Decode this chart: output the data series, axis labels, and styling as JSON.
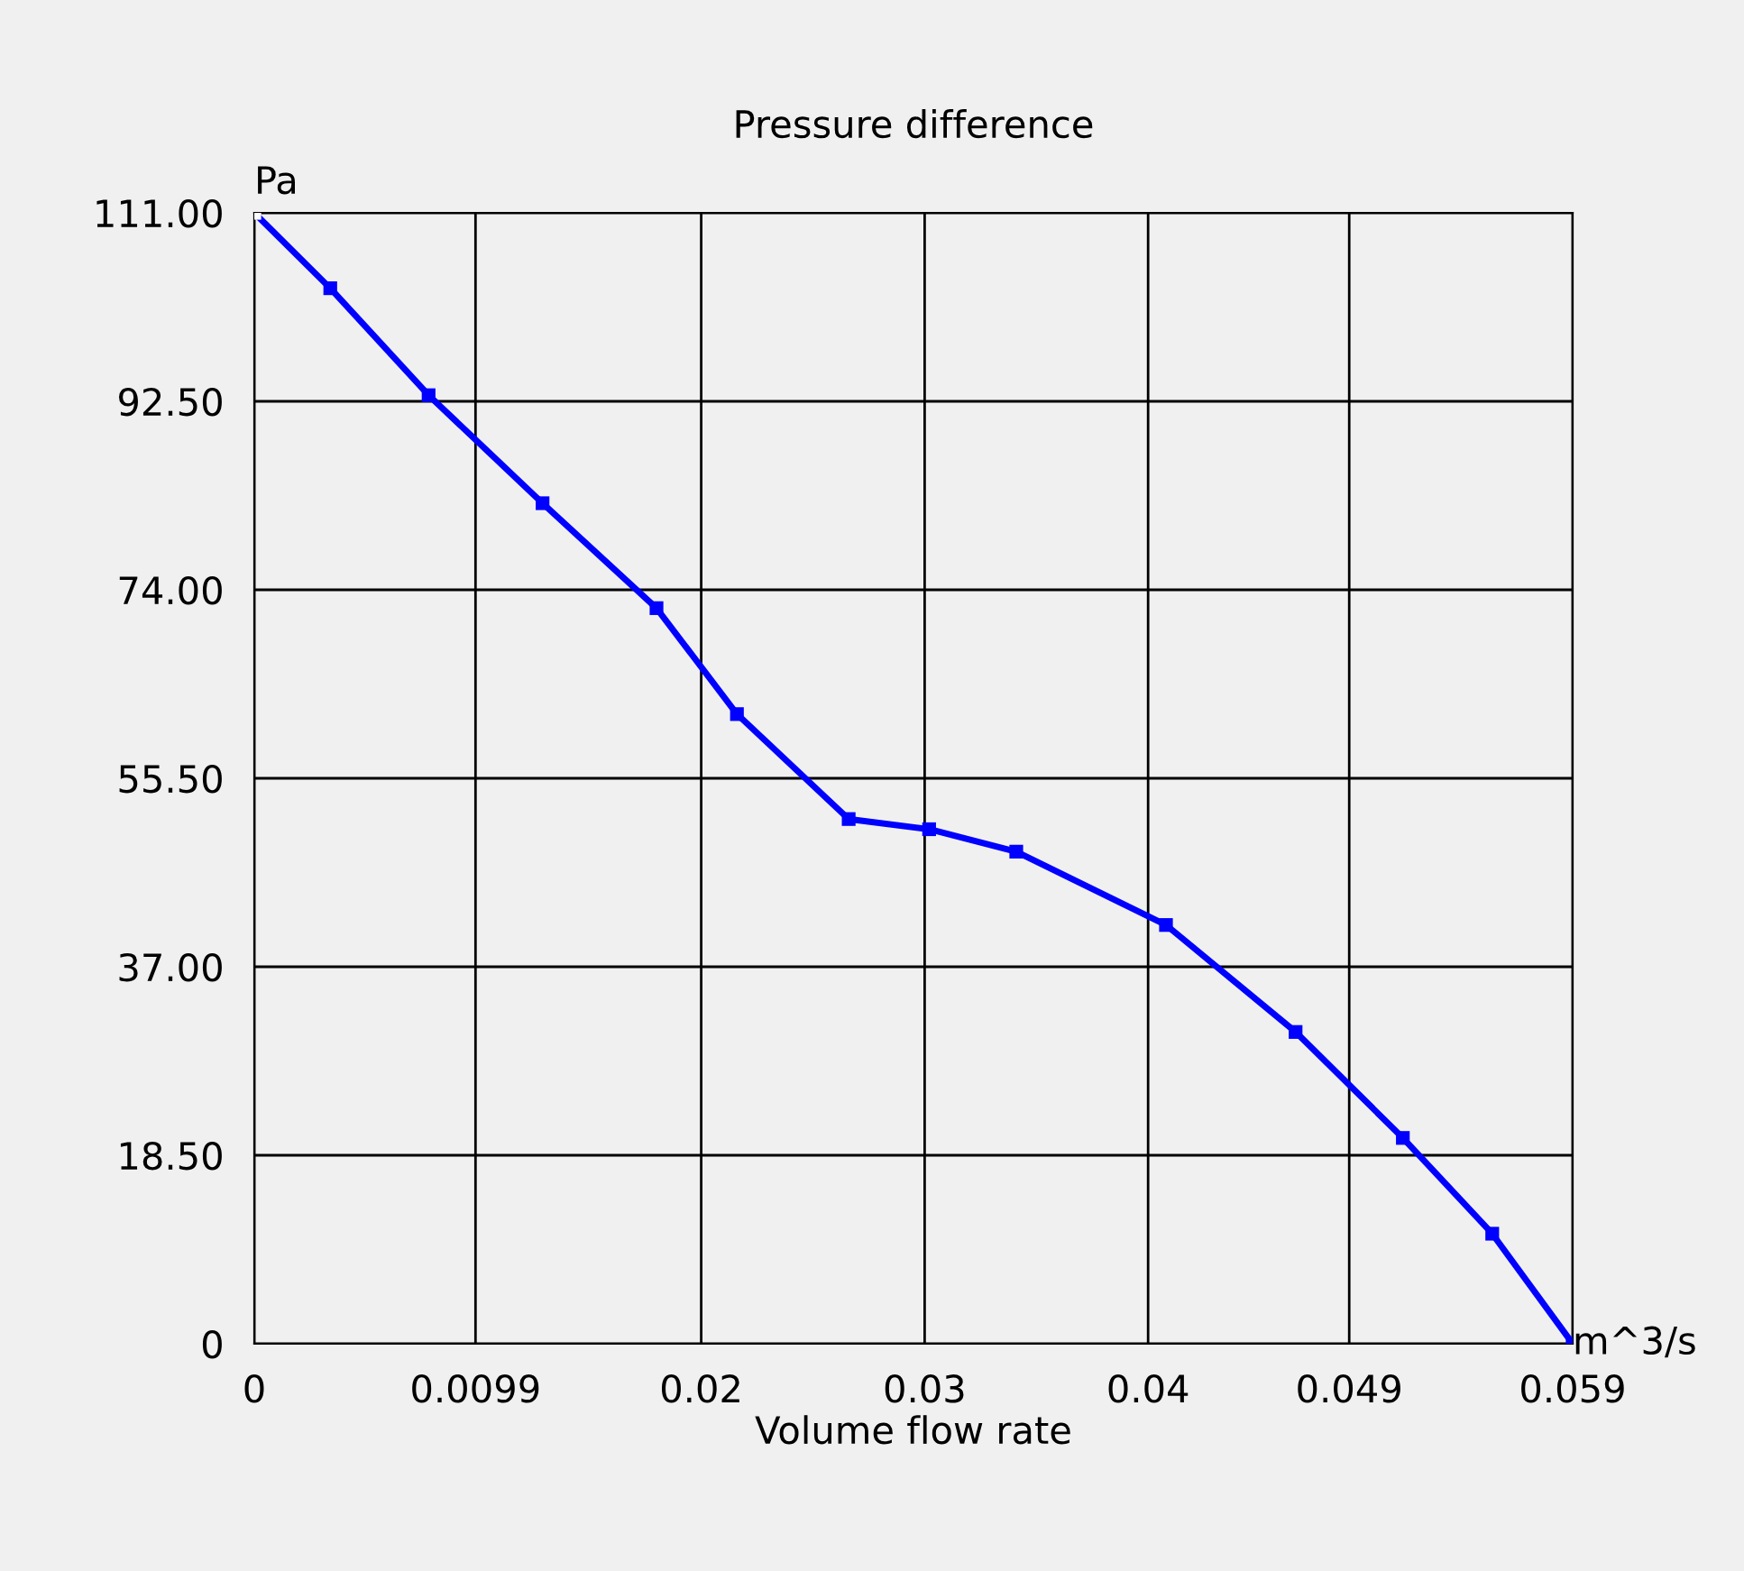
{
  "chart_data": {
    "type": "line",
    "title": "Pressure difference",
    "xlabel": "Volume flow rate",
    "ylabel": "Pa",
    "annotations": [
      "m^3/s"
    ],
    "x": [
      0,
      0.0034,
      0.0078,
      0.0129,
      0.018,
      0.0216,
      0.0266,
      0.0302,
      0.0341,
      0.0408,
      0.0466,
      0.0514,
      0.0554,
      0.059
    ],
    "series": [
      {
        "color": "#0000ff",
        "colors": [
          "#ffffff",
          "#0000ff",
          "#0000ff",
          "#0000ff",
          "#0000ff",
          "#0000ff",
          "#0000ff",
          "#0000ff",
          "#0000ff",
          "#0000ff",
          "#0000ff",
          "#0000ff",
          "#0000ff",
          "#0000ff"
        ],
        "values": [
          111,
          103.6,
          93.1,
          82.5,
          72.2,
          61.8,
          51.5,
          50.5,
          48.3,
          41.1,
          30.6,
          20.2,
          10.8,
          0
        ]
      }
    ],
    "xlim": [
      0,
      0.059
    ],
    "ylim": [
      0,
      111
    ],
    "xticks": [
      0,
      0.0099,
      0.02,
      0.03,
      0.04,
      0.049,
      0.059
    ],
    "yticks": [
      0,
      {
        "value": 18.5,
        "label": "18.50"
      },
      {
        "value": 37,
        "label": "37.00"
      },
      {
        "value": 55.5,
        "label": "55.50"
      },
      {
        "value": 74,
        "label": "74.00"
      },
      {
        "value": 92.5,
        "label": "92.50"
      },
      {
        "value": 111,
        "label": "111.00"
      }
    ],
    "grid": true,
    "marker": "square",
    "line_style": "solid"
  }
}
